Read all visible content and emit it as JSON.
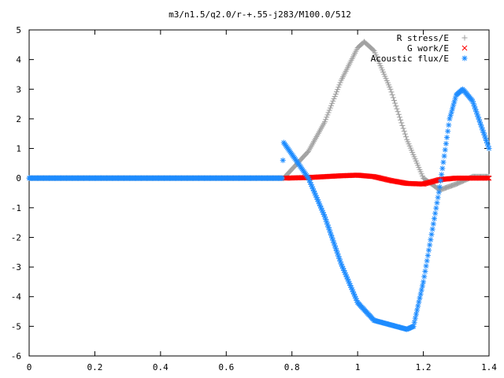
{
  "chart_data": {
    "type": "scatter",
    "title": "m3/n1.5/q2.0/r-+.55-j283/M100.0/512",
    "xlabel": "",
    "ylabel": "",
    "xlim": [
      0,
      1.4
    ],
    "ylim": [
      -6,
      5
    ],
    "xticks": [
      0,
      0.2,
      0.4,
      0.6,
      0.8,
      1,
      1.2,
      1.4
    ],
    "yticks": [
      -6,
      -5,
      -4,
      -3,
      -2,
      -1,
      0,
      1,
      2,
      3,
      4,
      5
    ],
    "grid": false,
    "legend_position": "top-right",
    "series": [
      {
        "name": "R stress/E",
        "marker": "+",
        "color": "#a0a0a0",
        "x": [
          0.0,
          0.1,
          0.2,
          0.3,
          0.4,
          0.5,
          0.6,
          0.7,
          0.775,
          0.8,
          0.85,
          0.9,
          0.95,
          1.0,
          1.02,
          1.05,
          1.1,
          1.15,
          1.2,
          1.25,
          1.3,
          1.35,
          1.4
        ],
        "y": [
          0,
          0,
          0,
          0,
          0,
          0,
          0,
          0,
          0,
          0.3,
          0.9,
          1.9,
          3.3,
          4.4,
          4.6,
          4.3,
          3.0,
          1.3,
          0.0,
          -0.4,
          -0.2,
          0.05,
          0.05
        ]
      },
      {
        "name": "G work/E",
        "marker": "x",
        "color": "#ff0000",
        "x": [
          0.78,
          0.85,
          0.9,
          0.95,
          1.0,
          1.05,
          1.1,
          1.15,
          1.2,
          1.25,
          1.3,
          1.35,
          1.4
        ],
        "y": [
          0,
          0.02,
          0.05,
          0.08,
          0.1,
          0.05,
          -0.08,
          -0.18,
          -0.2,
          -0.05,
          0.0,
          0.0,
          0.0
        ]
      },
      {
        "name": "Acoustic flux/E",
        "marker": "*",
        "color": "#1e8cff",
        "x": [
          0.0,
          0.1,
          0.2,
          0.3,
          0.4,
          0.5,
          0.6,
          0.7,
          0.77,
          0.775,
          0.8,
          0.85,
          0.9,
          0.95,
          1.0,
          1.05,
          1.1,
          1.15,
          1.17,
          1.2,
          1.25,
          1.28,
          1.3,
          1.32,
          1.35,
          1.4
        ],
        "y": [
          0,
          0,
          0,
          0,
          0,
          0,
          0,
          0,
          0,
          1.2,
          0.8,
          0.0,
          -1.3,
          -2.9,
          -4.2,
          -4.8,
          -4.95,
          -5.1,
          -5.0,
          -3.5,
          -0.3,
          2.0,
          2.8,
          3.0,
          2.6,
          1.0
        ]
      }
    ]
  }
}
